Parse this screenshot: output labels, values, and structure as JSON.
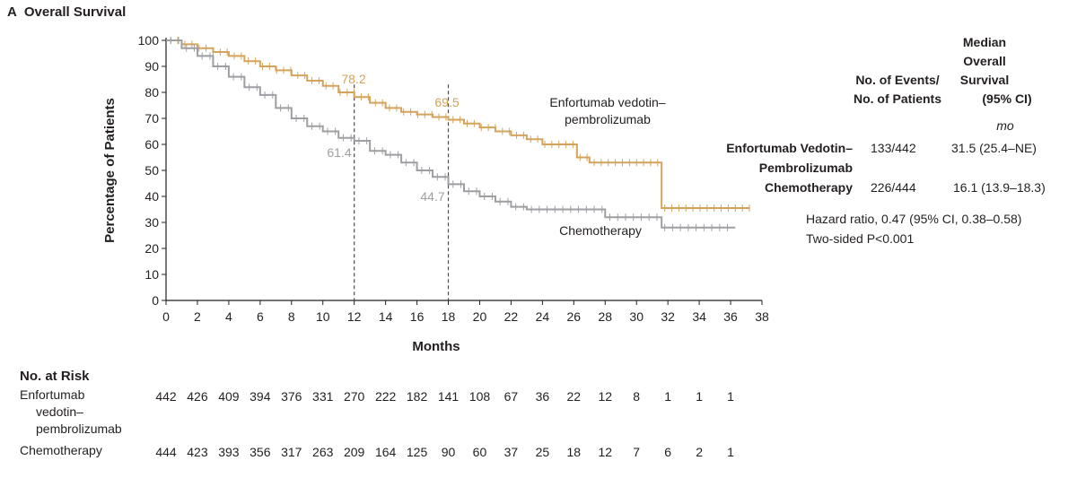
{
  "panel": {
    "letter": "A",
    "title": "Overall Survival"
  },
  "chart_data": {
    "type": "line",
    "step": true,
    "xlabel": "Months",
    "ylabel": "Percentage of Patients",
    "xlim": [
      0,
      38
    ],
    "ylim": [
      0,
      100
    ],
    "xticks": [
      0,
      2,
      4,
      6,
      8,
      10,
      12,
      14,
      16,
      18,
      20,
      22,
      24,
      26,
      28,
      30,
      32,
      34,
      36,
      38
    ],
    "yticks": [
      0,
      10,
      20,
      30,
      40,
      50,
      60,
      70,
      80,
      90,
      100
    ],
    "grid": false,
    "series": [
      {
        "name": "Enfortumab vedotin–pembrolizumab",
        "label_line1": "Enfortumab vedotin–",
        "label_line2": "pembrolizumab",
        "color": "#d4a35c",
        "x": [
          0,
          1,
          2,
          3,
          4,
          5,
          6,
          7,
          8,
          9,
          10,
          11,
          12,
          13,
          14,
          15,
          16,
          17,
          18,
          19,
          20,
          21,
          22,
          23,
          24,
          25.4,
          26.2,
          27,
          29,
          31.5,
          31.6,
          37.2
        ],
        "y": [
          100,
          98.5,
          97,
          95.5,
          94,
          92,
          90,
          88.5,
          86.5,
          84.5,
          82.5,
          80,
          78.2,
          76,
          74,
          72.5,
          71.5,
          70.5,
          69.5,
          68,
          66.5,
          65,
          63.5,
          62,
          60,
          60,
          55,
          53,
          53,
          53,
          35.5,
          35.5
        ]
      },
      {
        "name": "Chemotherapy",
        "label_line1": "Chemotherapy",
        "color": "#9d9fa2",
        "x": [
          0,
          1,
          2,
          3,
          4,
          5,
          6,
          7,
          8,
          9,
          10,
          11,
          12,
          13,
          14,
          15,
          16,
          17,
          18,
          19,
          20,
          21,
          22,
          23,
          24,
          25,
          26,
          27.5,
          28,
          31.5,
          31.6,
          36.3
        ],
        "y": [
          100,
          97,
          94,
          90,
          86,
          82,
          79,
          74,
          70,
          67,
          65,
          62.5,
          61.4,
          57.5,
          56,
          53,
          50,
          47.5,
          44.7,
          42,
          40,
          38,
          36,
          35,
          35,
          35,
          35,
          35,
          32,
          32,
          28,
          28
        ]
      }
    ],
    "annotations": [
      {
        "x": 12,
        "y": 78.2,
        "label": "78.2",
        "series": "Enfortumab vedotin–pembrolizumab"
      },
      {
        "x": 18,
        "y": 69.5,
        "label": "69.5",
        "series": "Enfortumab vedotin–pembrolizumab"
      },
      {
        "x": 12,
        "y": 61.4,
        "label": "61.4",
        "series": "Chemotherapy"
      },
      {
        "x": 18,
        "y": 44.7,
        "label": "44.7",
        "series": "Chemotherapy"
      }
    ]
  },
  "stats_table": {
    "col_events_line1": "No. of Events/",
    "col_events_line2": "No. of Patients",
    "col_median_line1": "Median",
    "col_median_line2": "Overall",
    "col_median_line3": "Survival",
    "col_median_line4": "(95% CI)",
    "unit": "mo",
    "rows": [
      {
        "group_line1": "Enfortumab Vedotin–",
        "group_line2": "Pembrolizumab",
        "events": "133/442",
        "median": "31.5 (25.4–NE)"
      },
      {
        "group_line1": "Chemotherapy",
        "events": "226/444",
        "median": "16.1 (13.9–18.3)"
      }
    ],
    "hazard_ratio": "Hazard ratio, 0.47 (95% CI, 0.38–0.58)",
    "p_value": "Two-sided P<0.001"
  },
  "risk_table": {
    "title": "No. at Risk",
    "rows": [
      {
        "label_line1": "Enfortumab",
        "label_line2": "vedotin–",
        "label_line3": "pembrolizumab",
        "values": [
          "442",
          "426",
          "409",
          "394",
          "376",
          "331",
          "270",
          "222",
          "182",
          "141",
          "108",
          "67",
          "36",
          "22",
          "12",
          "8",
          "1",
          "1",
          "1"
        ]
      },
      {
        "label_line1": "Chemotherapy",
        "values": [
          "444",
          "423",
          "393",
          "356",
          "317",
          "263",
          "209",
          "164",
          "125",
          "90",
          "60",
          "37",
          "25",
          "18",
          "12",
          "7",
          "6",
          "2",
          "1"
        ]
      }
    ]
  }
}
